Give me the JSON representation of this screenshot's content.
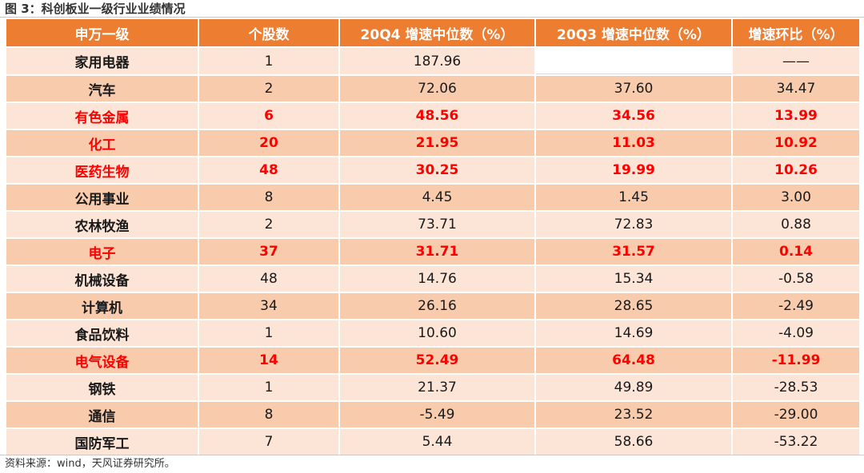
{
  "figure_title": "图 3：科创板业一级行业业绩情况",
  "table": {
    "headers": [
      "申万一级",
      "个股数",
      "20Q4 增速中位数（%）",
      "20Q3 增速中位数（%）",
      "增速环比（%）"
    ],
    "rows": [
      {
        "name": "家用电器",
        "count": "1",
        "q4": "187.96",
        "q3": "",
        "change": "——",
        "highlight": false
      },
      {
        "name": "汽车",
        "count": "2",
        "q4": "72.06",
        "q3": "37.60",
        "change": "34.47",
        "highlight": false
      },
      {
        "name": "有色金属",
        "count": "6",
        "q4": "48.56",
        "q3": "34.56",
        "change": "13.99",
        "highlight": true
      },
      {
        "name": "化工",
        "count": "20",
        "q4": "21.95",
        "q3": "11.03",
        "change": "10.92",
        "highlight": true
      },
      {
        "name": "医药生物",
        "count": "48",
        "q4": "30.25",
        "q3": "19.99",
        "change": "10.26",
        "highlight": true
      },
      {
        "name": "公用事业",
        "count": "8",
        "q4": "4.45",
        "q3": "1.45",
        "change": "3.00",
        "highlight": false
      },
      {
        "name": "农林牧渔",
        "count": "2",
        "q4": "73.71",
        "q3": "72.83",
        "change": "0.88",
        "highlight": false
      },
      {
        "name": "电子",
        "count": "37",
        "q4": "31.71",
        "q3": "31.57",
        "change": "0.14",
        "highlight": true
      },
      {
        "name": "机械设备",
        "count": "48",
        "q4": "14.76",
        "q3": "15.34",
        "change": "-0.58",
        "highlight": false
      },
      {
        "name": "计算机",
        "count": "34",
        "q4": "26.16",
        "q3": "28.65",
        "change": "-2.49",
        "highlight": false
      },
      {
        "name": "食品饮料",
        "count": "1",
        "q4": "10.60",
        "q3": "14.69",
        "change": "-4.09",
        "highlight": false
      },
      {
        "name": "电气设备",
        "count": "14",
        "q4": "52.49",
        "q3": "64.48",
        "change": "-11.99",
        "highlight": true
      },
      {
        "name": "钢铁",
        "count": "1",
        "q4": "21.37",
        "q3": "49.89",
        "change": "-28.53",
        "highlight": false
      },
      {
        "name": "通信",
        "count": "8",
        "q4": "-5.49",
        "q3": "23.52",
        "change": "-29.00",
        "highlight": false
      },
      {
        "name": "国防军工",
        "count": "7",
        "q4": "5.44",
        "q3": "58.66",
        "change": "-53.22",
        "highlight": false
      }
    ]
  },
  "footer": "资料来源：wind，天风证券研究所。",
  "colors": {
    "header_bg": "#ED7D31",
    "row_light": "#FCE4D6",
    "row_dark": "#F8CBAD",
    "highlight_text": "#FF0000"
  }
}
